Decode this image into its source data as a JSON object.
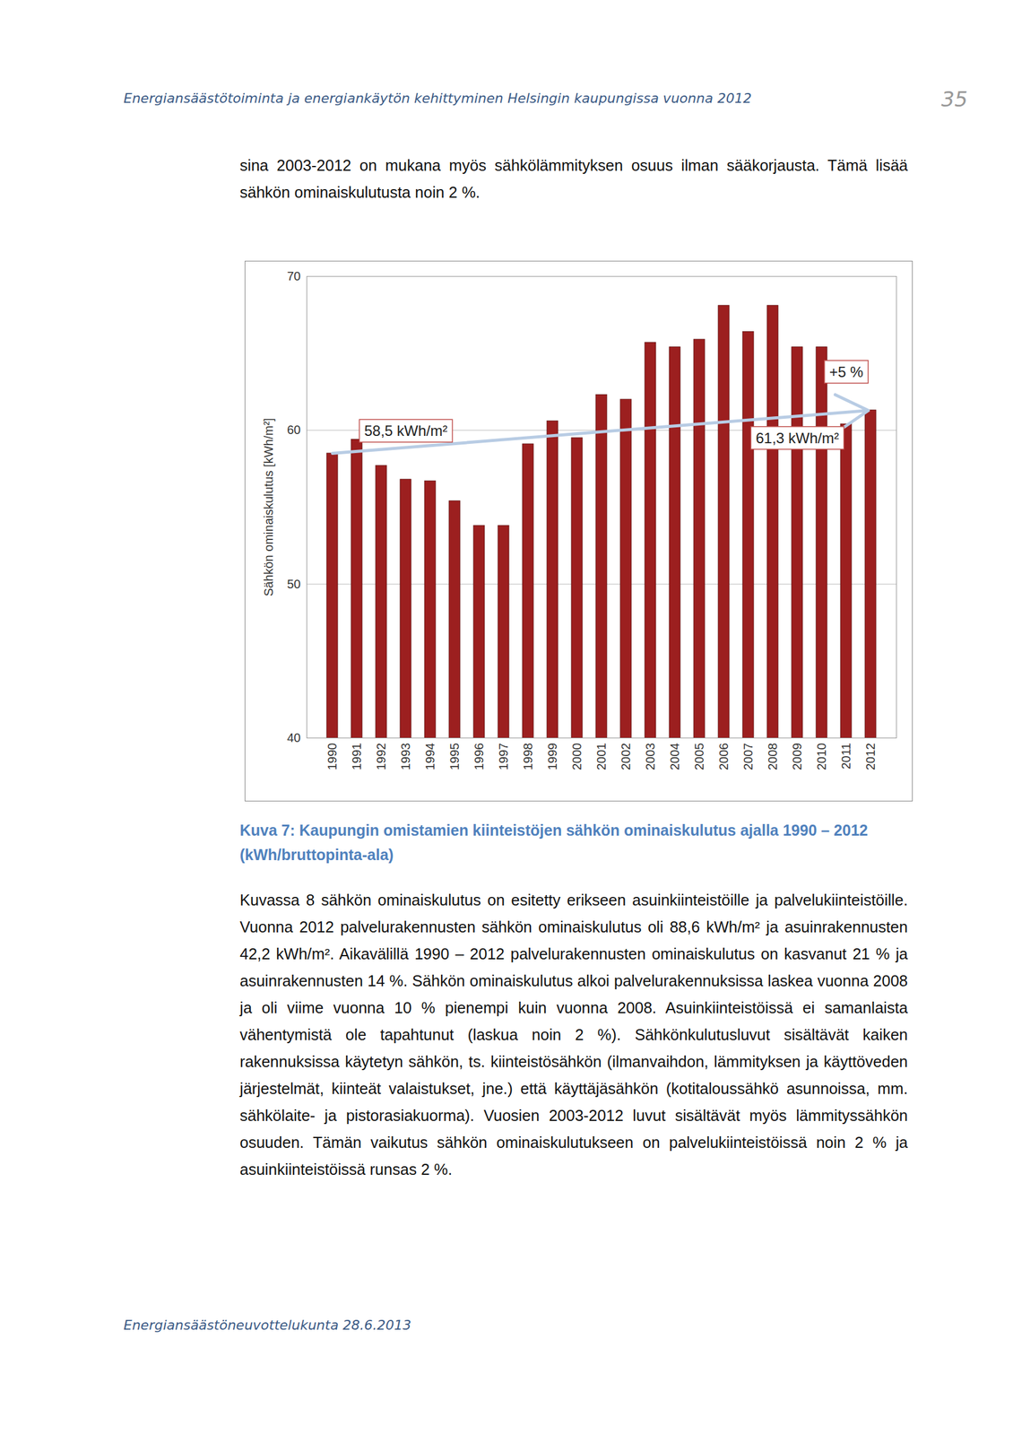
{
  "header": {
    "title": "Energiansäästötoiminta ja energiankäytön kehittyminen Helsingin kaupungissa vuonna 2012",
    "page_number": "35"
  },
  "paragraphs_before": [
    "sina 2003-2012 on mukana myös sähkölämmityksen osuus ilman sääkorjausta. Tämä lisää sähkön ominaiskulutusta noin 2 %."
  ],
  "chart_data": {
    "type": "bar",
    "ylabel": "Sähkön ominaiskulutus [kWh/m²]",
    "categories": [
      "1990",
      "1991",
      "1992",
      "1993",
      "1994",
      "1995",
      "1996",
      "1997",
      "1998",
      "1999",
      "2000",
      "2001",
      "2002",
      "2003",
      "2004",
      "2005",
      "2006",
      "2007",
      "2008",
      "2009",
      "2010",
      "2011",
      "2012"
    ],
    "values": [
      58.5,
      59.4,
      57.7,
      56.8,
      56.7,
      55.4,
      53.8,
      53.8,
      59.1,
      60.6,
      59.5,
      62.3,
      62.0,
      65.7,
      65.4,
      65.9,
      68.1,
      66.4,
      68.1,
      65.4,
      65.4,
      60.4,
      61.3
    ],
    "color": "#9c1f1f",
    "ylim": [
      40,
      70
    ],
    "yticks": [
      40,
      50,
      60,
      70
    ],
    "grid": true,
    "trend": {
      "from": "1990",
      "to": "2012",
      "start": 58.5,
      "end": 61.3,
      "start_label": "58,5 kWh/m²",
      "end_label": "61,3 kWh/m²",
      "change_label": "+5 %"
    }
  },
  "caption": "Kuva 7: Kaupungin omistamien kiinteistöjen sähkön ominaiskulutus ajalla 1990 – 2012 (kWh/bruttopinta-ala)",
  "paragraphs_after": [
    "Kuvassa 8 sähkön ominaiskulutus on esitetty erikseen asuinkiinteistöille ja palvelukiinteistöille. Vuonna 2012 palvelurakennusten sähkön ominaiskulutus oli 88,6 kWh/m² ja asuinrakennusten 42,2 kWh/m². Aikavälillä 1990 – 2012 palvelurakennusten ominaiskulutus on kasvanut 21 % ja asuinrakennusten 14 %. Sähkön ominaiskulutus alkoi palvelurakennuksissa laskea vuonna 2008 ja oli viime vuonna 10 % pienempi kuin vuonna 2008. Asuinkiinteistöissä ei samanlaista vähentymistä ole tapahtunut (laskua noin 2 %). Sähkönkulutusluvut sisältävät kaiken rakennuksissa käytetyn sähkön, ts. kiinteistösähkön (ilmanvaihdon, lämmityksen ja käyttöveden järjestelmät, kiinteät valaistukset, jne.) että käyttäjäsähkön (kotitaloussähkö asunnoissa, mm. sähkölaite- ja pistorasiakuorma). Vuosien 2003-2012 luvut sisältävät myös lämmityssähkön osuuden. Tämän vaikutus sähkön ominaiskulutukseen on palvelukiinteistöissä noin 2 % ja asuinkiinteistöissä runsas 2 %."
  ],
  "footer": "Energiansäästöneuvottelukunta 28.6.2013"
}
